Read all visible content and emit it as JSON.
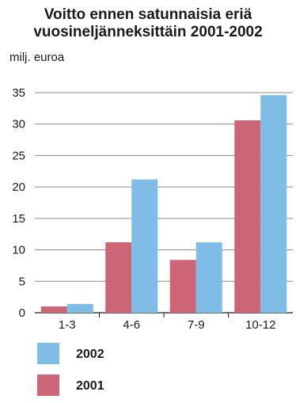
{
  "chart_data": {
    "type": "bar",
    "title_line1": "Voitto ennen satunnaisia eriä",
    "title_line2": "vuosineljänneksittäin 2001-2002",
    "unit_label": "milj. euroa",
    "categories": [
      "1-3",
      "4-6",
      "7-9",
      "10-12"
    ],
    "series": [
      {
        "name": "2001",
        "color": "#cc6677",
        "values": [
          1.0,
          11.2,
          8.4,
          30.6
        ]
      },
      {
        "name": "2002",
        "color": "#7fbde6",
        "values": [
          1.4,
          21.2,
          11.2,
          34.6
        ]
      }
    ],
    "ylim": [
      0,
      35
    ],
    "yticks": [
      0,
      5,
      10,
      15,
      20,
      25,
      30,
      35
    ],
    "grid": true,
    "legend_position": "bottom-left",
    "legend_order": [
      "2002",
      "2001"
    ]
  }
}
